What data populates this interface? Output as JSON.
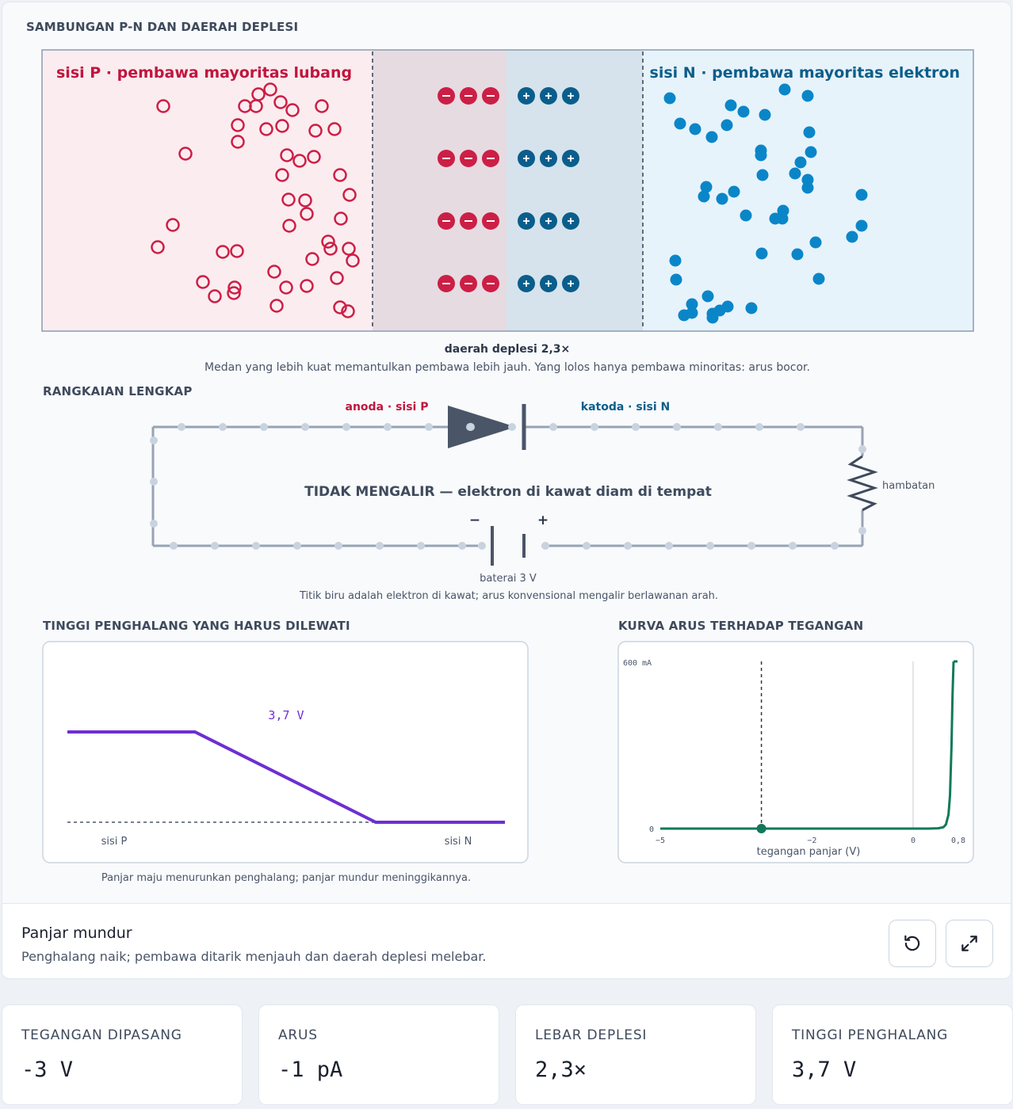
{
  "section_pn": {
    "title": "SAMBUNGAN P-N DAN DAERAH DEPLESI",
    "p_label": "sisi P · pembawa mayoritas lubang",
    "n_label": "sisi N · pembawa mayoritas elektron",
    "depletion_label": "daerah deplesi 2,3×",
    "caption": "Medan yang lebih kuat memantulkan pembawa lebih jauh. Yang lolos hanya pembawa minoritas: arus bocor.",
    "colors": {
      "p": "#cc1f45",
      "n": "#0a86c8",
      "ion_n": "#0a5e8c"
    }
  },
  "circuit": {
    "title": "RANGKAIAN LENGKAP",
    "anode_label": "anoda · sisi P",
    "cathode_label": "katoda · sisi N",
    "resistor_label": "hambatan",
    "status": "TIDAK MENGALIR — elektron di kawat diam di tempat",
    "battery_label": "baterai 3 V",
    "minus": "−",
    "plus": "+",
    "caption": "Titik biru adalah elektron di kawat; arus konvensional mengalir berlawanan arah."
  },
  "barrier": {
    "title": "TINGGI PENGHALANG YANG HARUS DILEWATI",
    "value_label": "3,7 V",
    "p_side": "sisi P",
    "n_side": "sisi N",
    "caption": "Panjar maju menurunkan penghalang; panjar mundur meninggikannya.",
    "color": "#6d2fd1"
  },
  "iv_curve": {
    "title": "KURVA ARUS TERHADAP TEGANGAN",
    "y_max_label": "600 mA",
    "y_zero_label": "0",
    "x_ticks": [
      "−5",
      "−2",
      "0",
      "0,8"
    ],
    "x_label": "tegangan panjar (V)",
    "color": "#11795a"
  },
  "chart_data": {
    "type": "line",
    "title": "KURVA ARUS TERHADAP TEGANGAN",
    "xlabel": "tegangan panjar (V)",
    "ylabel": "",
    "xlim": [
      -5,
      0.8
    ],
    "ylim": [
      0,
      600
    ],
    "y_unit": "mA",
    "x": [
      -5,
      -4,
      -3,
      -2,
      -1,
      0,
      0.3,
      0.5,
      0.6,
      0.65,
      0.7,
      0.73,
      0.76,
      0.78,
      0.8
    ],
    "series": [
      {
        "values": [
          0,
          0,
          0,
          0,
          0,
          0,
          0,
          1,
          5,
          15,
          50,
          120,
          300,
          480,
          600
        ]
      }
    ],
    "marker": {
      "x": -3,
      "y": 0
    }
  },
  "footer": {
    "title": "Panjar mundur",
    "description": "Penghalang naik; pembawa ditarik menjauh dan daerah deplesi melebar."
  },
  "stats": [
    {
      "label": "TEGANGAN DIPASANG",
      "value": "-3 V"
    },
    {
      "label": "ARUS",
      "value": "-1 pA"
    },
    {
      "label": "LEBAR DEPLESI",
      "value": "2,3×"
    },
    {
      "label": "TINGGI PENGHALANG",
      "value": "3,7 V"
    }
  ]
}
